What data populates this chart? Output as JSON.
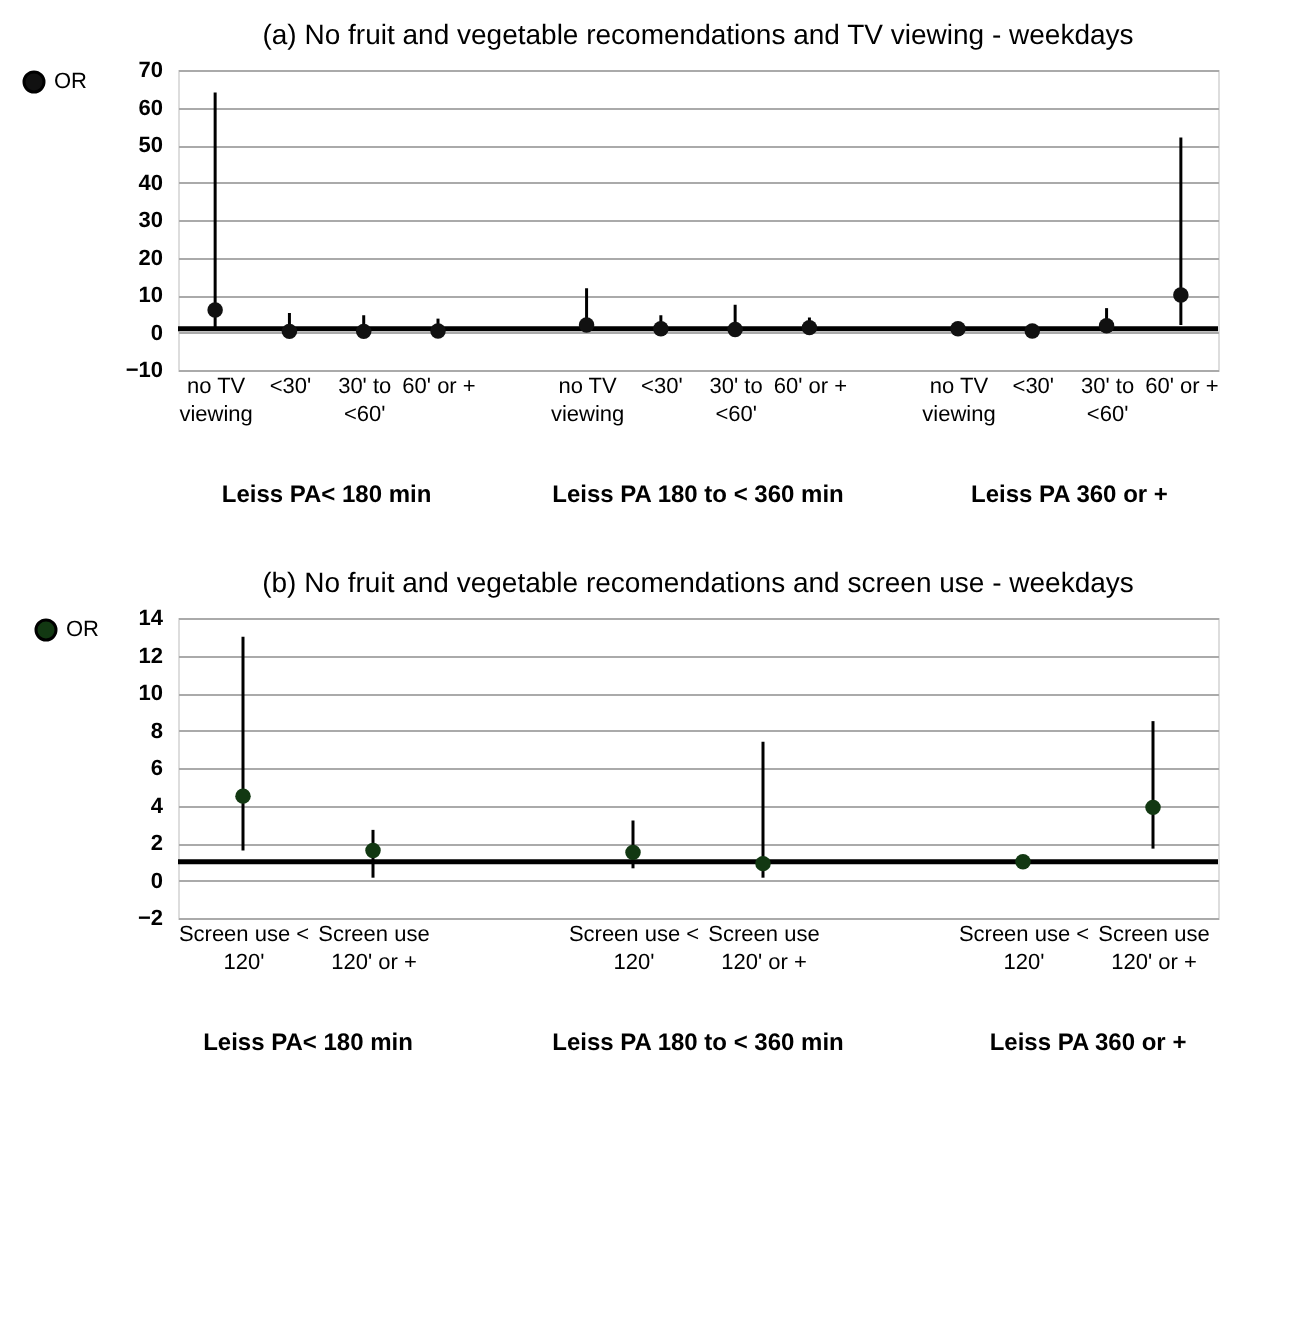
{
  "chart_data": [
    {
      "type": "scatter",
      "title": "(a) No fruit and vegetable recomendations and TV viewing - weekdays",
      "categories": [
        "no TV viewing",
        "<30'",
        "30' to <60'",
        "60' or +",
        null,
        "no TV viewing",
        "<30'",
        "30' to <60'",
        "60' or +",
        null,
        "no TV viewing",
        "<30'",
        "30' to <60'",
        "60' or +"
      ],
      "series": [
        {
          "name": "OR",
          "color": "#111111",
          "values": [
            6,
            0.3,
            0.3,
            0.4,
            null,
            2,
            1,
            0.8,
            1.3,
            null,
            1,
            0.4,
            1.8,
            10
          ],
          "errors": [
            [
              1,
              64
            ],
            [
              0,
              5.2
            ],
            [
              0,
              4.6
            ],
            [
              0,
              3.7
            ],
            null,
            [
              1,
              11.8
            ],
            [
              0,
              4.6
            ],
            [
              0,
              7.4
            ],
            [
              0,
              4
            ],
            null,
            null,
            null,
            [
              1,
              6.5
            ],
            [
              2,
              52
            ]
          ]
        }
      ],
      "ylim": [
        -10,
        70
      ],
      "yticks": [
        -10,
        0,
        10,
        20,
        30,
        40,
        50,
        60,
        70
      ],
      "grid": "y",
      "legend": "left",
      "marker": "circle",
      "ref_lines": [
        {
          "axis": "y",
          "value": 1,
          "color": "#000000"
        }
      ],
      "annotations": [
        "Leiss PA< 180 min",
        "Leiss PA 180 to < 360 min",
        "Leiss PA 360 or +"
      ]
    },
    {
      "type": "scatter",
      "title": "(b) No fruit and vegetable recomendations and screen use - weekdays",
      "categories": [
        "Screen use < 120'",
        "Screen use 120' or +",
        null,
        "Screen use < 120'",
        "Screen use 120' or +",
        null,
        "Screen use < 120'",
        "Screen use 120' or +"
      ],
      "series": [
        {
          "name": "OR",
          "color": "#123812",
          "values": [
            4.5,
            1.6,
            null,
            1.5,
            0.9,
            null,
            1,
            3.9
          ],
          "errors": [
            [
              1.6,
              13
            ],
            [
              0.15,
              2.7
            ],
            null,
            [
              0.65,
              3.2
            ],
            [
              0.15,
              7.4
            ],
            null,
            null,
            [
              1.7,
              8.5
            ]
          ]
        }
      ],
      "ylim": [
        -2,
        14
      ],
      "yticks": [
        -2,
        0,
        2,
        4,
        6,
        8,
        10,
        12,
        14
      ],
      "grid": "y",
      "legend": "left",
      "marker": "circle",
      "ref_lines": [
        {
          "axis": "y",
          "value": 1,
          "color": "#000000"
        }
      ],
      "annotations": [
        "Leiss PA< 180 min",
        "Leiss PA 180 to < 360 min",
        "Leiss PA 360 or +"
      ]
    }
  ]
}
